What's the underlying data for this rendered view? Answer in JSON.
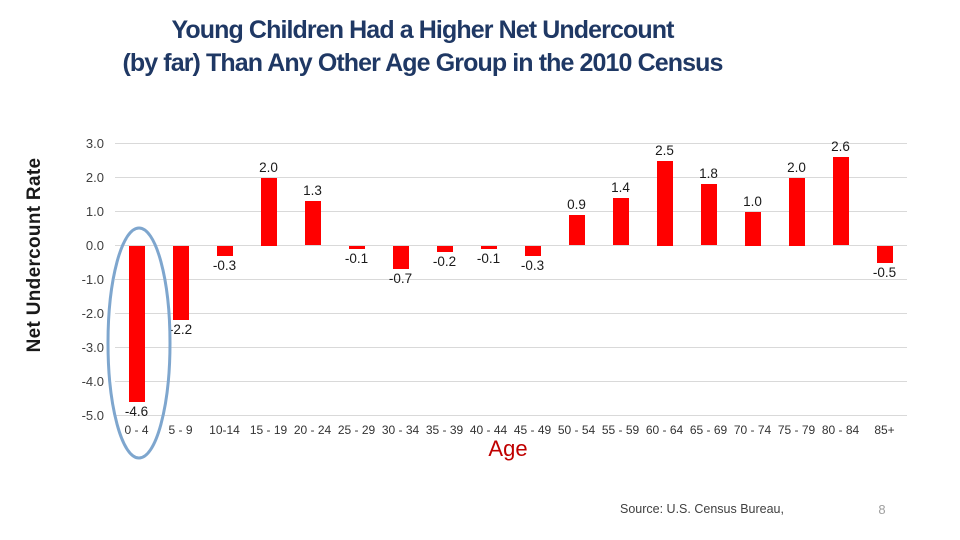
{
  "slide": {
    "title_line1": "Young Children Had a Higher Net Undercount",
    "title_line2": "(by far) Than Any Other Age Group in the 2010 Census",
    "source": "Source: U.S. Census Bureau,",
    "page_number": "8"
  },
  "chart_data": {
    "type": "bar",
    "title": "",
    "xlabel": "Age",
    "ylabel": "Net Undercount Rate",
    "ylim": [
      -5.0,
      3.0
    ],
    "ytick_labels": [
      "3.0",
      "2.0",
      "1.0",
      "0.0",
      "-1.0",
      "-2.0",
      "-3.0",
      "-4.0",
      "-5.0"
    ],
    "ytick_values": [
      3,
      2,
      1,
      0,
      -1,
      -2,
      -3,
      -4,
      -5
    ],
    "categories": [
      "0 - 4",
      "5 - 9",
      "10-14",
      "15 - 19",
      "20 - 24",
      "25 - 29",
      "30 - 34",
      "35 - 39",
      "40 - 44",
      "45 - 49",
      "50 - 54",
      "55 - 59",
      "60 - 64",
      "65 - 69",
      "70 - 74",
      "75 - 79",
      "80 - 84",
      "85+"
    ],
    "values": [
      -4.6,
      -2.2,
      -0.3,
      2.0,
      1.3,
      -0.1,
      -0.7,
      -0.2,
      -0.1,
      -0.3,
      0.9,
      1.4,
      2.5,
      1.8,
      1.0,
      2.0,
      2.6,
      -0.5
    ],
    "data_labels": [
      "-4.6",
      "-2.2",
      "-0.3",
      "2.0",
      "1.3",
      "-0.1",
      "-0.7",
      "-0.2",
      "-0.1",
      "-0.3",
      "0.9",
      "1.4",
      "2.5",
      "1.8",
      "1.0",
      "2.0",
      "2.6",
      "-0.5"
    ],
    "grid": true,
    "legend": "none",
    "annotation": {
      "shape": "ellipse",
      "highlights_category": "0 - 4"
    }
  },
  "colors": {
    "title": "#1F3864",
    "bar": "#FF0000",
    "gridline": "#D9D9D9",
    "ellipse": "#7EA6CE",
    "x_axis_title": "#C00000"
  }
}
